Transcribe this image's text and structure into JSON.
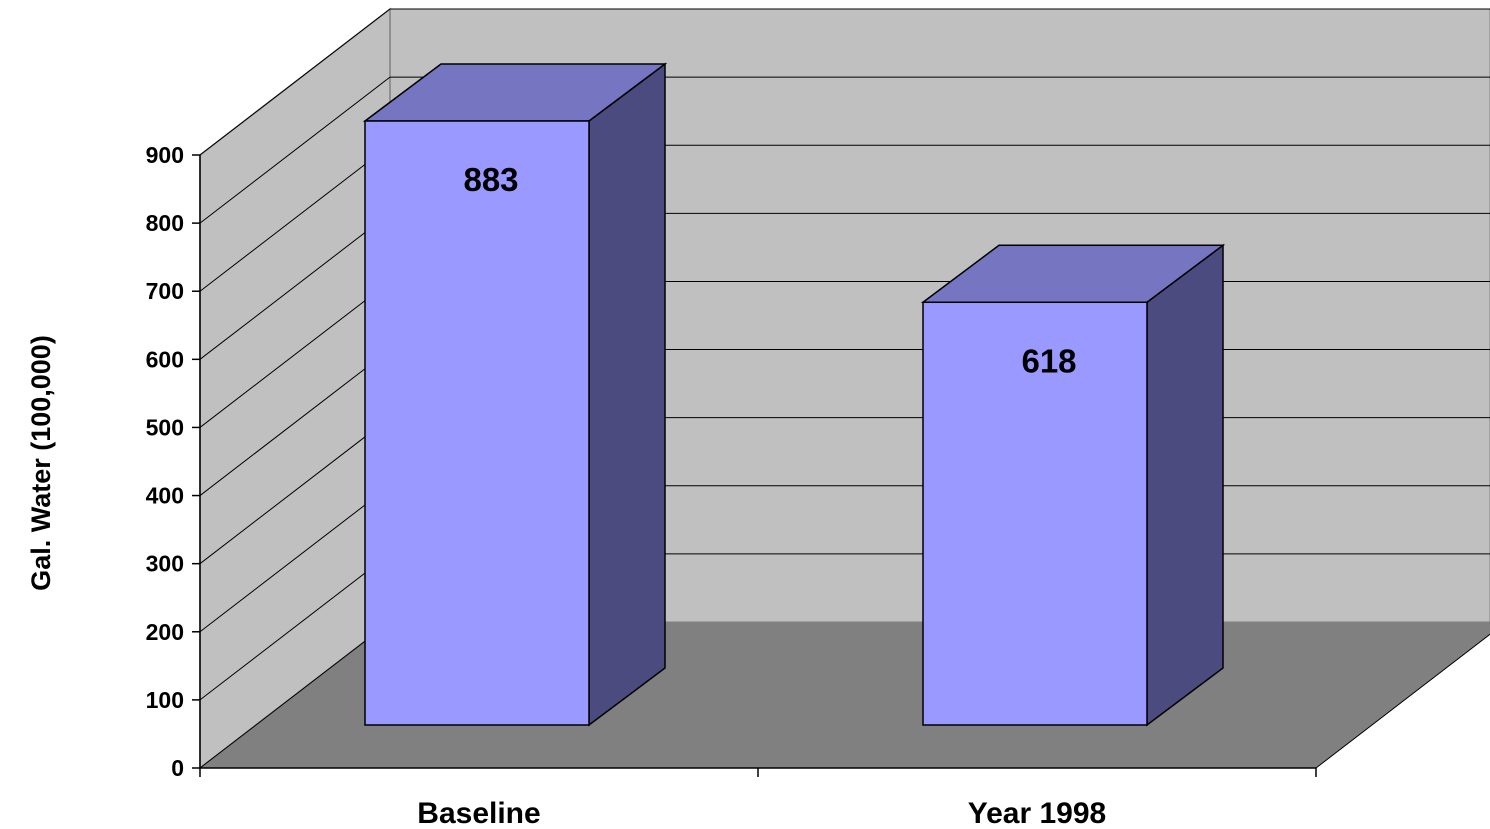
{
  "chart_data": {
    "type": "bar",
    "style": "3d-column",
    "categories": [
      "Baseline",
      "Year 1998"
    ],
    "values": [
      883,
      618
    ],
    "data_labels": [
      "883",
      "618"
    ],
    "xlabel": "",
    "ylabel": "Gal. Water (100,000)",
    "ylim": [
      0,
      900
    ],
    "yticks": [
      0,
      100,
      200,
      300,
      400,
      500,
      600,
      700,
      800,
      900
    ],
    "ytick_labels": [
      "0",
      "100",
      "200",
      "300",
      "400",
      "500",
      "600",
      "700",
      "800",
      "900"
    ],
    "grid": true,
    "legend": "none",
    "colors": {
      "bar_front": "#9999ff",
      "bar_top": "#7575c2",
      "bar_side": "#4b4b80",
      "back_wall": "#c0c0c0",
      "side_wall": "#c0c0c0",
      "floor": "#808080",
      "gridline": "#000000"
    }
  }
}
